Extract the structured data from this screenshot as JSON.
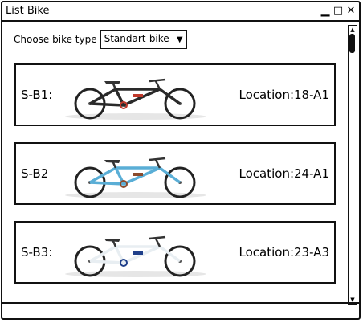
{
  "window": {
    "title": "List Bike",
    "controls": {
      "minimize": "▁",
      "maximize": "□",
      "close": "✕"
    }
  },
  "filter": {
    "label": "Choose bike type",
    "selected": "Standart-bike",
    "arrow": "▼"
  },
  "bikes": [
    {
      "id": "S-B1:",
      "location": "Location:18-A1",
      "icon": "bike-photo-black",
      "frame_color": "#2a2a2a",
      "accent_color": "#c0392b"
    },
    {
      "id": "S-B2",
      "location": "Location:24-A1",
      "icon": "bike-photo-blue",
      "frame_color": "#5aaed6",
      "accent_color": "#8b4a2b"
    },
    {
      "id": "S-B3:",
      "location": "Location:23-A3",
      "icon": "bike-photo-white",
      "frame_color": "#e8eef2",
      "accent_color": "#1f3f8a"
    }
  ],
  "scrollbar": {
    "up": "▲",
    "down": "▼"
  }
}
